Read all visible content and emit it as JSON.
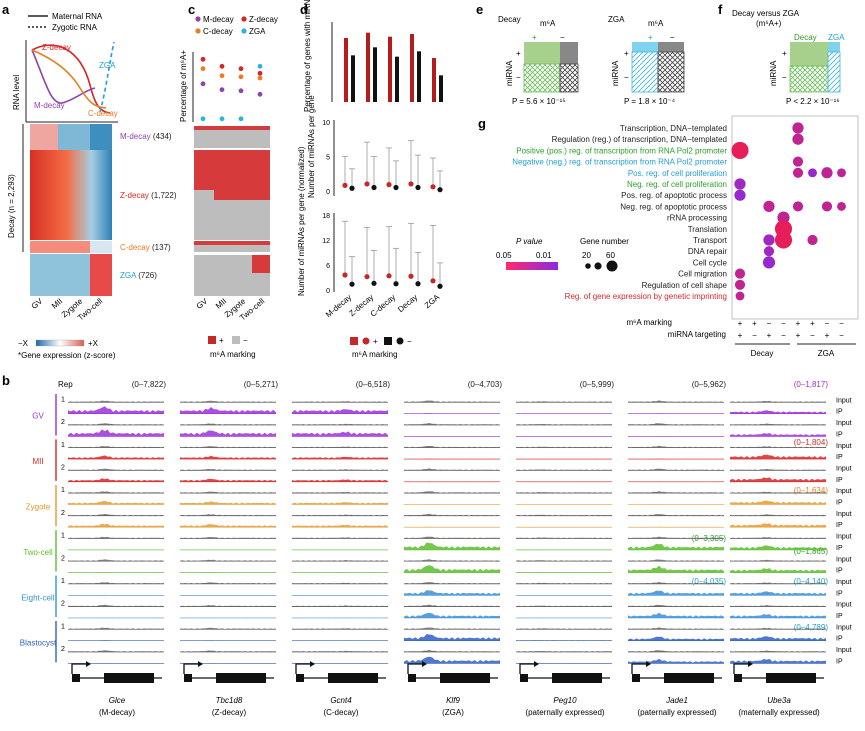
{
  "panel_a": {
    "letter": "a",
    "legend": {
      "maternal": "Maternal RNA",
      "zygotic": "Zygotic RNA"
    },
    "ylabel": "RNA level",
    "curve_labels": {
      "z": "Z-decay",
      "zga": "ZGA",
      "m": "M-decay",
      "c": "C-decay"
    },
    "clusters": [
      {
        "name": "M-decay",
        "count": "(434)",
        "color": "#8e44ad"
      },
      {
        "name": "Z-decay",
        "count": "(1,722)",
        "color": "#d62728"
      },
      {
        "name": "C-decay",
        "count": "(137)",
        "color": "#e67e22"
      },
      {
        "name": "ZGA",
        "count": "(726)",
        "color": "#1f9ed6"
      }
    ],
    "decay_label": "Decay (n = 2,293)",
    "stages": [
      "GV",
      "MII",
      "Zygote",
      "Two-cell"
    ],
    "colorbar": {
      "neg": "−X",
      "pos": "+X",
      "caption": "*Gene expression (z-score)"
    }
  },
  "panel_c": {
    "letter": "c",
    "legend": [
      {
        "name": "M-decay",
        "color": "#8e44ad"
      },
      {
        "name": "Z-decay",
        "color": "#d62728"
      },
      {
        "name": "C-decay",
        "color": "#e67e22"
      },
      {
        "name": "ZGA",
        "color": "#2bb5d8"
      }
    ],
    "ylabel": "Percentage of m⁶A+",
    "marking_label": "m⁶A marking",
    "plus": "+",
    "minus": "−"
  },
  "panel_d": {
    "letter": "d",
    "ylabel_top": "Percentage of genes with miRNA targeting",
    "ylabel_mid": "Number of miRNAs per gene",
    "ylabel_bot": "Number of miRNAs per gene (normalized)",
    "mid_ticks": [
      "10",
      "5",
      "0"
    ],
    "bot_ticks": [
      "18",
      "12",
      "6",
      "0"
    ],
    "categories": [
      "M-decay",
      "Z-decay",
      "C-decay",
      "Decay",
      "ZGA"
    ],
    "marking_label": "m⁶A marking",
    "plus": "+",
    "minus": "−"
  },
  "panel_e": {
    "letter": "e",
    "decay_title": "Decay",
    "zga_title": "ZGA",
    "m6a": "m⁶A",
    "mirna": "miRNA",
    "plus": "+",
    "minus": "−",
    "p_decay": "P = 5.6 × 10⁻¹⁵",
    "p_zga": "P = 1.8 × 10⁻⁴"
  },
  "panel_f": {
    "letter": "f",
    "title": "Decay versus ZGA",
    "subtitle": "(m⁶A+)",
    "decay": "Decay",
    "zga": "ZGA",
    "mirna": "miRNA",
    "plus": "+",
    "minus": "−",
    "p": "P < 2.2 × 10⁻¹⁶"
  },
  "panel_g": {
    "letter": "g",
    "terms": [
      {
        "label": "Transcription, DNA−templated",
        "color": "#222222"
      },
      {
        "label": "Regulation (reg.) of transcription, DNA−templated",
        "color": "#222222"
      },
      {
        "label": "Positive (pos.) reg. of transcription from RNA Pol2 promoter",
        "color": "#2ca02c"
      },
      {
        "label": "Negative (neg.) reg. of transcription from RNA Pol2 promoter",
        "color": "#1f9ed6"
      },
      {
        "label": "Pos. reg. of cell proliferation",
        "color": "#1f9ed6"
      },
      {
        "label": "Neg. reg. of cell proliferation",
        "color": "#2ca02c"
      },
      {
        "label": "Pos. reg. of apoptotic process",
        "color": "#222222"
      },
      {
        "label": "Neg. reg. of apoptotic process",
        "color": "#222222"
      },
      {
        "label": "rRNA processing",
        "color": "#222222"
      },
      {
        "label": "Translation",
        "color": "#222222"
      },
      {
        "label": "Transport",
        "color": "#222222"
      },
      {
        "label": "DNA repair",
        "color": "#222222"
      },
      {
        "label": "Cell cycle",
        "color": "#222222"
      },
      {
        "label": "Cell migration",
        "color": "#222222"
      },
      {
        "label": "Regulation of cell shape",
        "color": "#222222"
      },
      {
        "label": "Reg. of gene expression by genetic imprinting",
        "color": "#d62728"
      }
    ],
    "pvalue_title": "P value",
    "pvalue_ticks": [
      "0.05",
      "0.01"
    ],
    "gene_title": "Gene number",
    "gene_ticks": [
      "20",
      "60"
    ],
    "row_m6a": "m⁶A marking",
    "row_mirna": "miRNA targeting",
    "m6a_signs": [
      "+",
      "+",
      "−",
      "−",
      "+",
      "+",
      "−",
      "−"
    ],
    "mirna_signs": [
      "+",
      "−",
      "+",
      "−",
      "+",
      "−",
      "+",
      "−"
    ],
    "group_decay": "Decay",
    "group_zga": "ZGA"
  },
  "panel_b": {
    "letter": "b",
    "rep_label": "Rep",
    "range_top": [
      "(0–7,822)",
      "(0–5,271)",
      "(0–6,518)",
      "(0–4,703)",
      "(0–5,999)",
      "(0–5,962)",
      "(0–1,817)"
    ],
    "ranges_extra": [
      {
        "text": "(0–1,804)",
        "color": "#d62728"
      },
      {
        "text": "(0–1,634)",
        "color": "#e67e22"
      },
      {
        "text": "(0–3,305)",
        "color": "#2ca02c"
      },
      {
        "text": "(0–1,865)",
        "color": "#2ca02c"
      },
      {
        "text": "(0–4,035)",
        "color": "#1f9ed6"
      },
      {
        "text": "(0–4,140)",
        "color": "#1f9ed6"
      },
      {
        "text": "(0–4,789)",
        "color": "#1f9ed6"
      }
    ],
    "stages": [
      {
        "name": "GV",
        "color": "#9b30d9"
      },
      {
        "name": "MII",
        "color": "#d62728"
      },
      {
        "name": "Zygote",
        "color": "#e69a2e"
      },
      {
        "name": "Two-cell",
        "color": "#5bbd2b"
      },
      {
        "name": "Eight-cell",
        "color": "#3a8fd6"
      },
      {
        "name": "Blastocyst",
        "color": "#2f5fc4"
      }
    ],
    "rep1": "1",
    "rep2": "2",
    "track_input": "Input",
    "track_ip": "IP",
    "genes": [
      {
        "name": "Glce",
        "desc": "(M-decay)"
      },
      {
        "name": "Tbc1d8",
        "desc": "(Z-decay)"
      },
      {
        "name": "Gcnt4",
        "desc": "(C-decay)"
      },
      {
        "name": "Klf9",
        "desc": "(ZGA)"
      },
      {
        "name": "Peg10",
        "desc": "(paternally expressed)"
      },
      {
        "name": "Jade1",
        "desc": "(paternally expressed)"
      },
      {
        "name": "Ube3a",
        "desc": "(maternally expressed)"
      }
    ]
  },
  "chart_data": [
    {
      "type": "scatter",
      "title": "c: Percentage of m6A+",
      "categories": [
        "GV",
        "MII",
        "Zygote",
        "Two-cell"
      ],
      "series": [
        {
          "name": "M-decay",
          "values": [
            31,
            26,
            25,
            22
          ]
        },
        {
          "name": "Z-decay",
          "values": [
            52,
            46,
            44,
            40
          ]
        },
        {
          "name": "C-decay",
          "values": [
            44,
            38,
            37,
            36
          ]
        },
        {
          "name": "ZGA",
          "values": [
            1,
            1,
            1,
            46
          ]
        }
      ]
    },
    {
      "type": "bar",
      "title": "d: Percentage of genes with miRNA targeting",
      "categories": [
        "M-decay",
        "Z-decay",
        "C-decay",
        "Decay",
        "ZGA"
      ],
      "series": [
        {
          "name": "m6A+",
          "values": [
            48,
            52,
            49,
            51,
            33
          ]
        },
        {
          "name": "m6A-",
          "values": [
            35,
            41,
            34,
            38,
            20
          ]
        }
      ]
    },
    {
      "type": "scatter",
      "title": "d: Number of miRNAs per gene",
      "ylim": [
        0,
        10
      ],
      "categories": [
        "M-decay",
        "Z-decay",
        "C-decay",
        "Decay",
        "ZGA"
      ],
      "series": [
        {
          "name": "m6A+ median",
          "values": [
            1.2,
            1.4,
            1.3,
            1.4,
            1.0
          ]
        },
        {
          "name": "m6A- median",
          "values": [
            0.8,
            0.9,
            0.9,
            0.9,
            0.6
          ]
        },
        {
          "name": "m6A+ upper",
          "values": [
            5.2,
            7.2,
            6.4,
            7.4,
            5.0
          ]
        },
        {
          "name": "m6A- upper",
          "values": [
            3.5,
            5.2,
            4.6,
            5.4,
            3.2
          ]
        }
      ]
    },
    {
      "type": "scatter",
      "title": "d: Number of miRNAs per gene (normalized)",
      "ylim": [
        0,
        18
      ],
      "categories": [
        "M-decay",
        "Z-decay",
        "C-decay",
        "Decay",
        "ZGA"
      ],
      "series": [
        {
          "name": "m6A+ median",
          "values": [
            3.6,
            3.2,
            3.4,
            3.3,
            2.2
          ]
        },
        {
          "name": "m6A- median",
          "values": [
            1.4,
            1.6,
            1.5,
            1.5,
            0.9
          ]
        },
        {
          "name": "m6A+ upper",
          "values": [
            16.5,
            15.0,
            15.2,
            16.0,
            15.5
          ]
        },
        {
          "name": "m6A- upper",
          "values": [
            8.0,
            9.5,
            10.0,
            9.0,
            6.5
          ]
        }
      ]
    },
    {
      "type": "scatter",
      "title": "g: GO enrichment",
      "x": [
        "Decay m6A+ miRNA+",
        "Decay m6A+ miRNA-",
        "Decay m6A- miRNA+",
        "Decay m6A- miRNA-",
        "ZGA m6A+ miRNA+",
        "ZGA m6A+ miRNA-",
        "ZGA m6A- miRNA+",
        "ZGA m6A- miRNA-"
      ],
      "points": [
        {
          "term": 0,
          "col": 4,
          "genes": 20,
          "p": 0.005
        },
        {
          "term": 1,
          "col": 4,
          "genes": 20,
          "p": 0.005
        },
        {
          "term": 2,
          "col": 0,
          "genes": 60,
          "p": 0.001
        },
        {
          "term": 3,
          "col": 4,
          "genes": 15,
          "p": 0.005
        },
        {
          "term": 4,
          "col": 4,
          "genes": 15,
          "p": 0.005
        },
        {
          "term": 4,
          "col": 5,
          "genes": 10,
          "p": 0.03
        },
        {
          "term": 4,
          "col": 6,
          "genes": 20,
          "p": 0.005
        },
        {
          "term": 4,
          "col": 7,
          "genes": 10,
          "p": 0.005
        },
        {
          "term": 5,
          "col": 0,
          "genes": 20,
          "p": 0.02
        },
        {
          "term": 6,
          "col": 0,
          "genes": 20,
          "p": 0.03
        },
        {
          "term": 7,
          "col": 2,
          "genes": 20,
          "p": 0.005
        },
        {
          "term": 7,
          "col": 4,
          "genes": 15,
          "p": 0.005
        },
        {
          "term": 7,
          "col": 6,
          "genes": 15,
          "p": 0.005
        },
        {
          "term": 7,
          "col": 7,
          "genes": 10,
          "p": 0.005
        },
        {
          "term": 8,
          "col": 3,
          "genes": 25,
          "p": 0.005
        },
        {
          "term": 9,
          "col": 3,
          "genes": 60,
          "p": 0.001
        },
        {
          "term": 10,
          "col": 2,
          "genes": 20,
          "p": 0.02
        },
        {
          "term": 10,
          "col": 3,
          "genes": 60,
          "p": 0.001
        },
        {
          "term": 10,
          "col": 5,
          "genes": 15,
          "p": 0.005
        },
        {
          "term": 11,
          "col": 2,
          "genes": 15,
          "p": 0.02
        },
        {
          "term": 12,
          "col": 2,
          "genes": 25,
          "p": 0.03
        },
        {
          "term": 13,
          "col": 0,
          "genes": 15,
          "p": 0.005
        },
        {
          "term": 14,
          "col": 0,
          "genes": 15,
          "p": 0.005
        },
        {
          "term": 15,
          "col": 0,
          "genes": 10,
          "p": 0.005
        }
      ]
    }
  ]
}
